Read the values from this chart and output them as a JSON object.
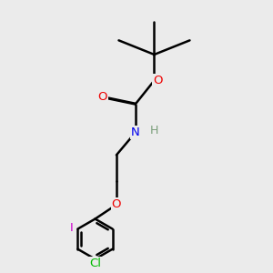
{
  "bg_color": "#ebebeb",
  "atom_colors": {
    "C": "#000000",
    "H": "#7a9e7a",
    "N": "#0000ee",
    "O": "#ee0000",
    "Cl": "#00bb00",
    "I": "#cc00cc"
  },
  "bond_color": "#000000",
  "bond_width": 1.8
}
